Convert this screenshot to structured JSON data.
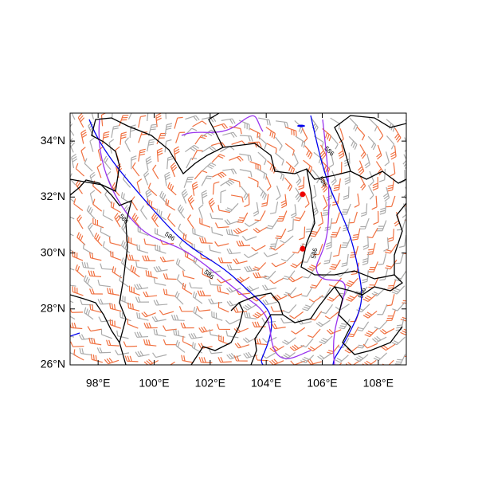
{
  "map": {
    "xlim": [
      97,
      109
    ],
    "ylim": [
      26,
      35
    ],
    "xticks": [
      {
        "value": 98,
        "label": "98°E"
      },
      {
        "value": 100,
        "label": "100°E"
      },
      {
        "value": 102,
        "label": "102°E"
      },
      {
        "value": 104,
        "label": "104°E"
      },
      {
        "value": 106,
        "label": "106°E"
      },
      {
        "value": 108,
        "label": "108°E"
      }
    ],
    "yticks": [
      {
        "value": 26,
        "label": "26°N"
      },
      {
        "value": 28,
        "label": "28°N"
      },
      {
        "value": 30,
        "label": "30°N"
      },
      {
        "value": 32,
        "label": "32°N"
      },
      {
        "value": 34,
        "label": "34°N"
      }
    ],
    "points": [
      {
        "lon": 105.3,
        "lat": 32.1,
        "color": "#ee0000"
      },
      {
        "lon": 105.3,
        "lat": 30.15,
        "color": "#ee0000"
      }
    ],
    "contour_labels": [
      "586",
      "586",
      "586",
      "586",
      "586",
      "586",
      "586"
    ]
  }
}
